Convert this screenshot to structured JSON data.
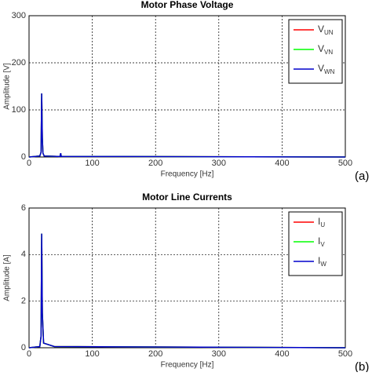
{
  "chart_data": [
    {
      "type": "line",
      "title": "Motor Phase Voltage",
      "x_label": "Frequency [Hz]",
      "y_label": "Amplitude [V]",
      "panel_label": "(a)",
      "x": [
        0,
        17,
        19,
        20,
        21,
        22,
        24,
        49,
        50,
        51,
        150,
        500
      ],
      "series": [
        {
          "name": "V",
          "subscript": "UN",
          "color": "#ff0000",
          "values": [
            0,
            2,
            10,
            135,
            40,
            8,
            2,
            1,
            8,
            1,
            1,
            0
          ]
        },
        {
          "name": "V",
          "subscript": "VN",
          "color": "#00ff00",
          "values": [
            0,
            2,
            10,
            135,
            40,
            8,
            2,
            1,
            8,
            1,
            1,
            0
          ]
        },
        {
          "name": "V",
          "subscript": "WN",
          "color": "#0000cc",
          "values": [
            0,
            2,
            10,
            135,
            40,
            8,
            2,
            1,
            8,
            1,
            1,
            0
          ]
        }
      ],
      "xlim": [
        0,
        500
      ],
      "xticks": [
        0,
        100,
        200,
        300,
        400,
        500
      ],
      "ylim": [
        0,
        300
      ],
      "yticks": [
        0,
        100,
        200,
        300
      ],
      "grid": true,
      "legend": "upper right"
    },
    {
      "type": "line",
      "title": "Motor Line Currents",
      "x_label": "Frequency [Hz]",
      "y_label": "Amplitude [A]",
      "panel_label": "(b)",
      "x": [
        0,
        17,
        19,
        20,
        21,
        23,
        40,
        500
      ],
      "series": [
        {
          "name": "I",
          "subscript": "U",
          "color": "#ff0000",
          "values": [
            0,
            0.05,
            0.5,
            4.9,
            1.5,
            0.2,
            0.05,
            0
          ]
        },
        {
          "name": "I",
          "subscript": "V",
          "color": "#00ff00",
          "values": [
            0,
            0.05,
            0.5,
            4.9,
            1.5,
            0.2,
            0.05,
            0
          ]
        },
        {
          "name": "I",
          "subscript": "W",
          "color": "#0000cc",
          "values": [
            0,
            0.05,
            0.5,
            4.9,
            1.5,
            0.2,
            0.05,
            0
          ]
        }
      ],
      "xlim": [
        0,
        500
      ],
      "xticks": [
        0,
        100,
        200,
        300,
        400,
        500
      ],
      "ylim": [
        0,
        6
      ],
      "yticks": [
        0,
        2,
        4,
        6
      ],
      "grid": true,
      "legend": "upper right"
    }
  ]
}
